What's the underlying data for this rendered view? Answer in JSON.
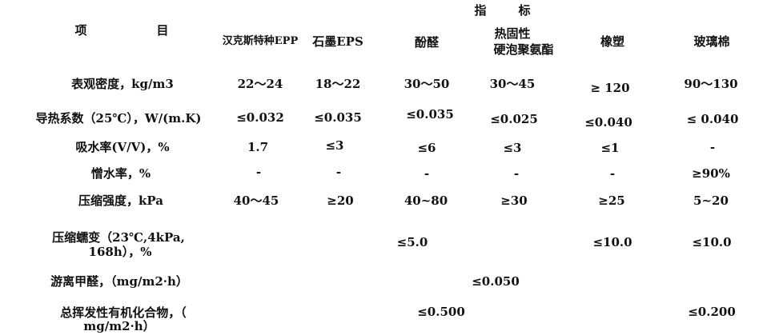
{
  "header": {
    "item_label_1": "项",
    "item_label_2": "目",
    "index_label_1": "指",
    "index_label_2": "标",
    "columns": [
      "汉克斯特种EPP",
      "石墨EPS",
      "酚醛",
      "热固性",
      "硬泡聚氨酯",
      "橡塑",
      "玻璃棉"
    ]
  },
  "rows": [
    {
      "label": "表观密度，kg/m3",
      "values": [
        "22～24",
        "18～22",
        "30～50",
        "30～45",
        "≥ 120",
        "90～130"
      ]
    },
    {
      "label": "导热系数（25℃），W/(m.K)",
      "values": [
        "≤0.032",
        "≤0.035",
        "≤0.035",
        "≤0.025",
        "≤0.040",
        "≤ 0.040"
      ]
    },
    {
      "label": "吸水率(V/V)，%",
      "values": [
        "1.7",
        "≤3",
        "≤6",
        "≤3",
        "≤1",
        "-"
      ]
    },
    {
      "label": "憎水率，%",
      "values": [
        "-",
        "-",
        "-",
        "-",
        "-",
        "≥90%"
      ]
    },
    {
      "label": "压缩强度，kPa",
      "values": [
        "40～45",
        "≥20",
        "40~80",
        "≥30",
        "≥25",
        "5~20"
      ]
    },
    {
      "label_line1": "压缩蠕变（23℃,4kPa,",
      "label_line2": "168h），%",
      "values": [
        "≤5.0",
        "≤10.0",
        "≤10.0"
      ]
    },
    {
      "label": "游离甲醛，（mg/m2·h）",
      "values": [
        "≤0.050"
      ]
    },
    {
      "label_line1": "总挥发性有机化合物，（",
      "label_line2": "mg/m2·h）",
      "values": [
        "≤0.500",
        "≤0.200"
      ]
    }
  ]
}
